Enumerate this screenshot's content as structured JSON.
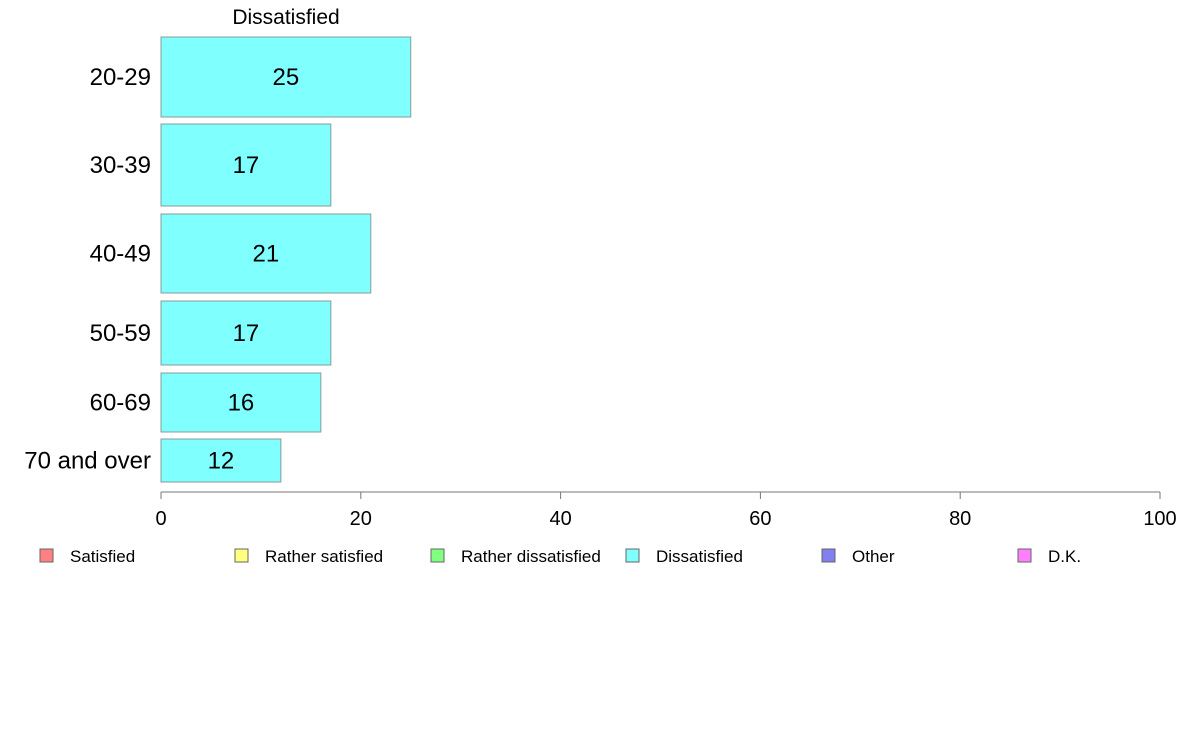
{
  "chart_data": {
    "type": "bar",
    "orientation": "horizontal",
    "stacked": true,
    "title": "Dissatisfied",
    "categories": [
      "20-29",
      "30-39",
      "40-49",
      "50-59",
      "60-69",
      "70 and over"
    ],
    "series": [
      {
        "name": "Satisfied",
        "color": "#ff8080",
        "values": [
          0,
          0,
          0,
          0,
          0,
          0
        ]
      },
      {
        "name": "Rather satisfied",
        "color": "#ffff80",
        "values": [
          0,
          0,
          0,
          0,
          0,
          0
        ]
      },
      {
        "name": "Rather dissatisfied",
        "color": "#80ff80",
        "values": [
          0,
          0,
          0,
          0,
          0,
          0
        ]
      },
      {
        "name": "Dissatisfied",
        "color": "#80ffff",
        "values": [
          25,
          17,
          21,
          17,
          16,
          12
        ],
        "labels": [
          "25",
          "17",
          "21",
          "17",
          "16",
          "12"
        ]
      },
      {
        "name": "Other",
        "color": "#8080f0",
        "values": [
          0,
          0,
          0,
          0,
          0,
          0
        ]
      },
      {
        "name": "D.K.",
        "color": "#ff80ff",
        "values": [
          0,
          0,
          0,
          0,
          0,
          0
        ]
      }
    ],
    "xlim": [
      0,
      100
    ],
    "xticks": [
      0,
      20,
      40,
      60,
      80,
      100
    ],
    "xtick_labels": [
      "0",
      "20",
      "40",
      "60",
      "80",
      "100"
    ],
    "xlabel": "",
    "ylabel": "",
    "grid": false,
    "legend_position": "bottom"
  }
}
